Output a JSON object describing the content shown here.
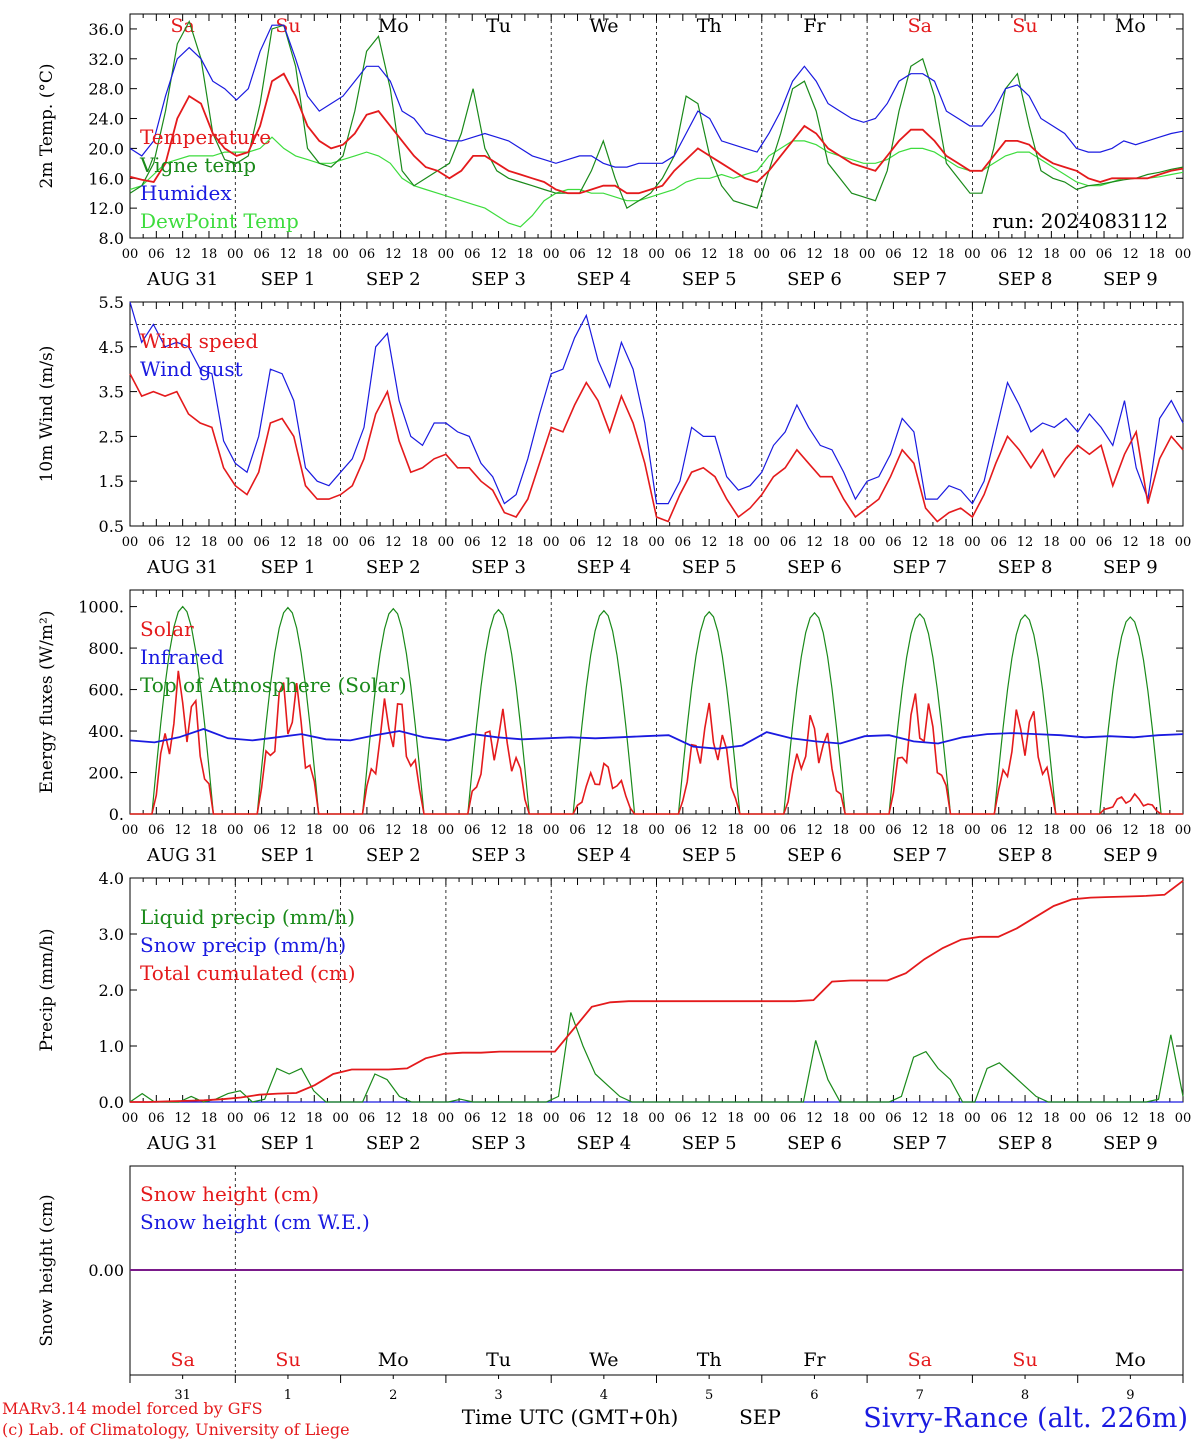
{
  "colors": {
    "red": "#e41a1c",
    "green": "#1a8a1a",
    "blue": "#1a1ae0",
    "lightgreen": "#3ddc3d",
    "purple": "#7a1a8a"
  },
  "days": [
    "Sa",
    "Su",
    "Mo",
    "Tu",
    "We",
    "Th",
    "Fr",
    "Sa",
    "Su",
    "Mo"
  ],
  "weekend_days": [
    0,
    1,
    7,
    8
  ],
  "dates": [
    "AUG 31",
    "SEP 1",
    "SEP 2",
    "SEP 3",
    "SEP 4",
    "SEP 5",
    "SEP 6",
    "SEP 7",
    "SEP 8",
    "SEP 9"
  ],
  "hour_ticks": [
    "00",
    "06",
    "12",
    "18"
  ],
  "hour_end": "00",
  "run": "run: 2024083112",
  "footer": {
    "model": "MARv3.14 model forced by GFS",
    "lab": "(c) Lab. of Climatology, University of Liege",
    "time_label": "Time UTC (GMT+0h)",
    "month": "SEP",
    "station": "Sivry-Rance (alt. 226m)",
    "day_numbers": [
      "31",
      "1",
      "2",
      "3",
      "4",
      "5",
      "6",
      "7",
      "8",
      "9"
    ]
  },
  "chart_data": [
    {
      "type": "line",
      "ylabel": "2m Temp. (°C)",
      "ylim": [
        8,
        38
      ],
      "yticks": [
        "8.0",
        "12.0",
        "16.0",
        "20.0",
        "24.0",
        "28.0",
        "32.0",
        "36.0"
      ],
      "xlabel": "",
      "x_unit": "hours since 2024-08-31 00 UTC (3-hourly)",
      "series": [
        {
          "name": "Temperature",
          "color": "red",
          "values": [
            16.2,
            15.8,
            15.5,
            18,
            24,
            27,
            26,
            22,
            20,
            19,
            19.5,
            23,
            29,
            30,
            27,
            23,
            21,
            20,
            20.5,
            22,
            24.5,
            25,
            23,
            21,
            19,
            17.5,
            17,
            16,
            17,
            19,
            19,
            18,
            17,
            16.5,
            16,
            15.5,
            14.5,
            14,
            14,
            14.5,
            15,
            15,
            14,
            14,
            14.5,
            15,
            17,
            18.5,
            20,
            19,
            18,
            17,
            16,
            15.5,
            17,
            19,
            21,
            23,
            22,
            20,
            19,
            18,
            17.5,
            17,
            19,
            21,
            22.5,
            22.5,
            21,
            19,
            18,
            17,
            17,
            19,
            21,
            21,
            20.5,
            19,
            18,
            17.5,
            17,
            16,
            15.5,
            16,
            16,
            16,
            16,
            16.5,
            17,
            17.3
          ]
        },
        {
          "name": "Vigne temp",
          "color": "green",
          "values": [
            14,
            15,
            18,
            25,
            34,
            37,
            32,
            22,
            18.5,
            18,
            19,
            26,
            36,
            36.5,
            31,
            20,
            18,
            17.5,
            19,
            25,
            33,
            35,
            28,
            17,
            15,
            16,
            17,
            18,
            22,
            28,
            20,
            17,
            16,
            15.5,
            15,
            14.5,
            14,
            14,
            14,
            17,
            21,
            16,
            12,
            13,
            14,
            16,
            19,
            27,
            26,
            19,
            15,
            13,
            12.5,
            12,
            17,
            22,
            28,
            29,
            25,
            18,
            16,
            14,
            13.5,
            13,
            17,
            25,
            31,
            32,
            27,
            18,
            16,
            14,
            14,
            20,
            28,
            30,
            23,
            17,
            16,
            15.5,
            14.5,
            15,
            15.2,
            15.5,
            15.8,
            16,
            16.5,
            16.8,
            17.2,
            17.5
          ]
        },
        {
          "name": "Humidex",
          "color": "blue",
          "values": [
            20,
            19,
            21,
            27,
            32,
            33.5,
            32,
            29,
            28,
            26.5,
            28,
            33,
            36.5,
            36.5,
            32,
            27,
            25,
            26,
            27,
            29,
            31,
            31,
            29,
            25,
            24,
            22,
            21.5,
            21,
            21,
            21.5,
            22,
            21.5,
            21,
            20,
            19,
            18.5,
            18,
            18.5,
            19,
            19,
            18,
            17.5,
            17.5,
            18,
            18,
            18,
            19,
            22,
            25,
            24,
            21,
            20.5,
            20,
            19.5,
            22,
            25,
            29,
            31,
            29,
            26,
            25,
            24,
            23.5,
            24,
            26,
            29,
            30,
            30,
            29,
            25,
            24,
            23,
            23,
            25,
            28,
            28.5,
            27,
            24,
            23,
            22,
            20,
            19.5,
            19.5,
            20,
            21,
            20.5,
            21,
            21.5,
            22,
            22.3
          ]
        },
        {
          "name": "DewPoint Temp",
          "color": "lightgreen",
          "values": [
            14.5,
            15,
            16.5,
            18,
            18.5,
            19,
            19,
            19,
            19.5,
            19.5,
            19.5,
            20,
            21.5,
            20,
            19,
            18.5,
            18,
            18,
            18.5,
            19,
            19.5,
            19,
            18,
            16,
            15,
            14.5,
            14,
            13.5,
            13,
            12.5,
            12,
            11,
            10,
            9.5,
            11,
            13,
            14,
            14.5,
            14.5,
            14,
            14,
            13.5,
            13,
            13,
            13.5,
            14,
            14.5,
            15.5,
            16,
            16,
            16.5,
            16,
            16.5,
            17,
            19,
            20,
            21,
            21,
            20.5,
            19.5,
            19,
            18.5,
            18,
            18,
            18.5,
            19.5,
            20,
            20,
            19.5,
            18.5,
            17.5,
            17,
            17,
            18,
            19,
            19.5,
            19.5,
            18.5,
            17.5,
            16.5,
            15.5,
            15,
            15,
            15.5,
            16,
            16,
            16,
            16.2,
            16.5,
            16.8
          ]
        }
      ]
    },
    {
      "type": "line",
      "ylabel": "10m Wind (m/s)",
      "ylim": [
        0.5,
        5.5
      ],
      "yticks": [
        "0.5",
        "1.5",
        "2.5",
        "3.5",
        "4.5",
        "5.5"
      ],
      "ref_line": 5,
      "series": [
        {
          "name": "Wind speed",
          "color": "red",
          "values": [
            3.9,
            3.4,
            3.5,
            3.4,
            3.5,
            3.0,
            2.8,
            2.7,
            1.8,
            1.4,
            1.2,
            1.7,
            2.8,
            2.9,
            2.5,
            1.4,
            1.1,
            1.1,
            1.2,
            1.4,
            2.0,
            3.0,
            3.5,
            2.4,
            1.7,
            1.8,
            2.0,
            2.1,
            1.8,
            1.8,
            1.5,
            1.3,
            0.8,
            0.7,
            1.1,
            1.9,
            2.7,
            2.6,
            3.2,
            3.7,
            3.3,
            2.6,
            3.4,
            2.8,
            1.9,
            0.7,
            0.6,
            1.2,
            1.7,
            1.8,
            1.6,
            1.1,
            0.7,
            0.9,
            1.2,
            1.6,
            1.8,
            2.2,
            1.9,
            1.6,
            1.6,
            1.1,
            0.7,
            0.9,
            1.1,
            1.6,
            2.2,
            1.9,
            0.9,
            0.6,
            0.8,
            0.9,
            0.7,
            1.2,
            1.9,
            2.5,
            2.2,
            1.8,
            2.2,
            1.6,
            2.0,
            2.3,
            2.1,
            2.3,
            1.4,
            2.1,
            2.6,
            1.0,
            2.0,
            2.5,
            2.2
          ]
        },
        {
          "name": "Wind gust",
          "color": "blue",
          "values": [
            5.5,
            4.6,
            5.0,
            4.5,
            4.6,
            4.5,
            4.0,
            3.9,
            2.4,
            1.9,
            1.7,
            2.5,
            4.0,
            3.9,
            3.3,
            1.8,
            1.5,
            1.4,
            1.7,
            2.0,
            2.7,
            4.5,
            4.8,
            3.3,
            2.5,
            2.3,
            2.8,
            2.8,
            2.6,
            2.5,
            1.9,
            1.6,
            1.0,
            1.2,
            2.0,
            3.0,
            3.9,
            4.0,
            4.7,
            5.2,
            4.2,
            3.6,
            4.6,
            4.0,
            2.8,
            1.0,
            1.0,
            1.5,
            2.7,
            2.5,
            2.5,
            1.6,
            1.3,
            1.4,
            1.7,
            2.3,
            2.6,
            3.2,
            2.7,
            2.3,
            2.2,
            1.7,
            1.1,
            1.5,
            1.6,
            2.1,
            2.9,
            2.6,
            1.1,
            1.1,
            1.4,
            1.3,
            1.0,
            1.5,
            2.6,
            3.7,
            3.2,
            2.6,
            2.8,
            2.7,
            2.9,
            2.6,
            3.0,
            2.7,
            2.3,
            3.3,
            1.8,
            1.1,
            2.9,
            3.3,
            2.8
          ]
        }
      ]
    },
    {
      "type": "line",
      "ylabel": "Energy fluxes (W/m²)",
      "ylim": [
        0,
        1080
      ],
      "yticks": [
        "0.",
        "200.",
        "400.",
        "600.",
        "800.",
        "1000."
      ],
      "series": [
        {
          "name": "Solar",
          "color": "red",
          "peaks": [
            710,
            710,
            620,
            520,
            260,
            540,
            500,
            620,
            560,
            100
          ]
        },
        {
          "name": "Infrared",
          "color": "blue",
          "values": [
            355,
            345,
            370,
            410,
            365,
            355,
            370,
            385,
            360,
            355,
            380,
            400,
            370,
            355,
            385,
            370,
            360,
            365,
            370,
            365,
            370,
            375,
            380,
            325,
            315,
            330,
            395,
            365,
            350,
            340,
            375,
            380,
            350,
            340,
            370,
            385,
            390,
            385,
            380,
            370,
            375,
            370,
            380,
            385
          ]
        },
        {
          "name": "Top of Atmosphere (Solar)",
          "color": "green",
          "peaks": [
            1000,
            995,
            990,
            985,
            980,
            975,
            970,
            965,
            960,
            950
          ]
        }
      ]
    },
    {
      "type": "line",
      "ylabel": "Precip (mm/h)",
      "ylim": [
        0,
        4
      ],
      "yticks": [
        "0.0",
        "1.0",
        "2.0",
        "3.0",
        "4.0"
      ],
      "series": [
        {
          "name": "Liquid precip (mm/h)",
          "color": "green",
          "values": [
            0,
            0.15,
            0,
            0,
            0,
            0.1,
            0,
            0.05,
            0.15,
            0.2,
            0,
            0.05,
            0.6,
            0.5,
            0.6,
            0.2,
            0,
            0,
            0,
            0,
            0.5,
            0.4,
            0.1,
            0,
            0,
            0,
            0,
            0.05,
            0,
            0,
            0,
            0,
            0,
            0,
            0,
            0.1,
            1.6,
            1.0,
            0.5,
            0.3,
            0.1,
            0,
            0,
            0,
            0,
            0,
            0,
            0,
            0,
            0,
            0,
            0,
            0,
            0,
            0,
            0,
            1.1,
            0.4,
            0,
            0,
            0,
            0,
            0,
            0.1,
            0.8,
            0.9,
            0.6,
            0.4,
            0,
            0,
            0.6,
            0.7,
            0.5,
            0.3,
            0.1,
            0,
            0,
            0,
            0,
            0,
            0,
            0,
            0,
            0,
            0.05,
            1.2,
            0.1
          ]
        },
        {
          "name": "Snow precip (mm/h)",
          "color": "blue",
          "values": [
            0,
            0,
            0,
            0,
            0,
            0,
            0,
            0,
            0,
            0,
            0,
            0,
            0,
            0,
            0,
            0,
            0,
            0,
            0,
            0,
            0,
            0,
            0,
            0,
            0,
            0,
            0,
            0,
            0,
            0,
            0,
            0,
            0,
            0,
            0,
            0,
            0,
            0,
            0,
            0,
            0,
            0,
            0,
            0,
            0,
            0,
            0,
            0,
            0,
            0,
            0,
            0,
            0,
            0,
            0,
            0,
            0,
            0,
            0,
            0,
            0,
            0,
            0,
            0,
            0,
            0,
            0,
            0,
            0,
            0,
            0,
            0,
            0,
            0,
            0,
            0,
            0,
            0,
            0,
            0,
            0,
            0,
            0,
            0,
            0,
            0,
            0
          ]
        },
        {
          "name": "Total cumulated (cm)",
          "color": "red",
          "values": [
            0,
            0,
            0.01,
            0.02,
            0.03,
            0.05,
            0.08,
            0.13,
            0.15,
            0.16,
            0.3,
            0.5,
            0.58,
            0.58,
            0.58,
            0.6,
            0.78,
            0.86,
            0.88,
            0.88,
            0.9,
            0.9,
            0.9,
            0.9,
            1.3,
            1.7,
            1.78,
            1.8,
            1.8,
            1.8,
            1.8,
            1.8,
            1.8,
            1.8,
            1.8,
            1.8,
            1.8,
            1.82,
            2.15,
            2.17,
            2.17,
            2.17,
            2.3,
            2.55,
            2.75,
            2.9,
            2.95,
            2.95,
            3.1,
            3.3,
            3.5,
            3.62,
            3.65,
            3.66,
            3.67,
            3.68,
            3.7,
            3.95
          ]
        }
      ]
    },
    {
      "type": "line",
      "ylabel": "Snow height (cm)",
      "yticks": [
        "0.00"
      ],
      "series": [
        {
          "name": "Snow height (cm)",
          "color": "red",
          "values": [
            0
          ]
        },
        {
          "name": "Snow height (cm W.E.)",
          "color": "blue",
          "values": [
            0
          ]
        }
      ]
    }
  ]
}
